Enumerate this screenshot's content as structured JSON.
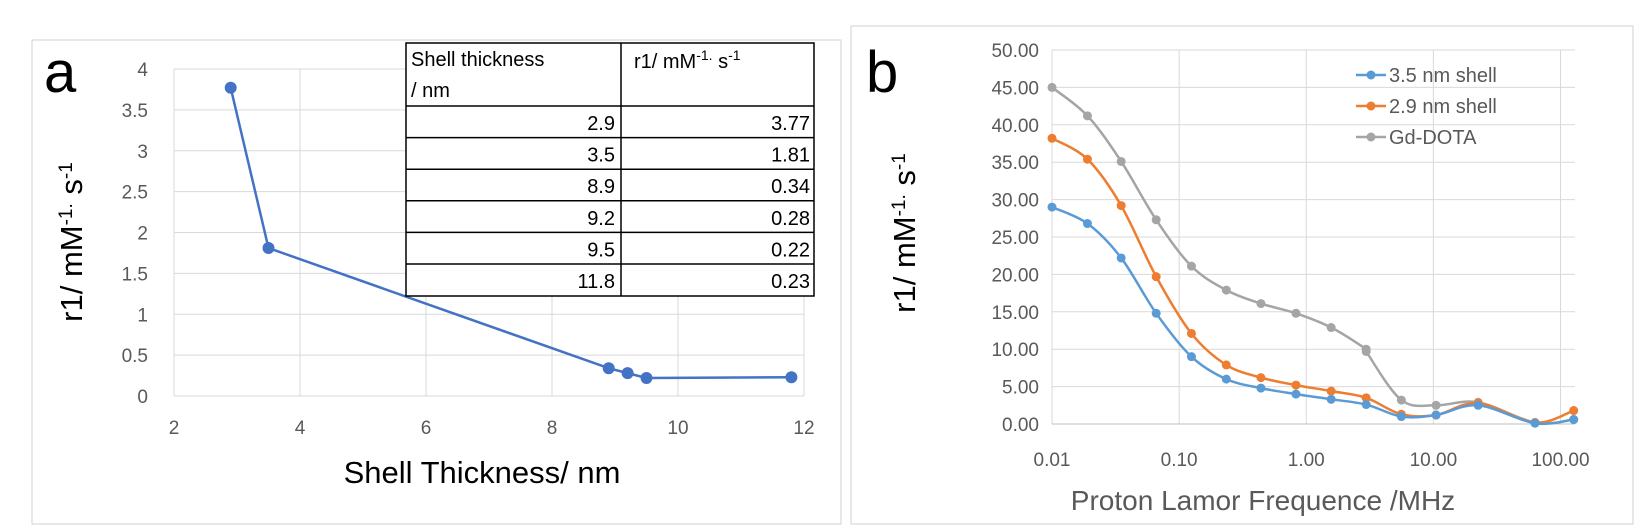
{
  "chart_data": [
    {
      "panel_label": "a",
      "type": "line",
      "xlabel": "Shell Thickness/ nm",
      "ylabel_base": "r1/ mM",
      "ylabel_sup1": "-1.",
      "ylabel_mid": " s",
      "ylabel_sup2": "-1",
      "xlim": [
        2,
        12
      ],
      "ylim": [
        0,
        4
      ],
      "xticks": [
        2,
        4,
        6,
        8,
        10,
        12
      ],
      "yticks": [
        0,
        0.5,
        1,
        1.5,
        2,
        2.5,
        3,
        3.5,
        4
      ],
      "x_tick_labels": [
        "2",
        "4",
        "6",
        "8",
        "10",
        "12"
      ],
      "y_tick_labels": [
        "0",
        "0.5",
        "1",
        "1.5",
        "2",
        "2.5",
        "3",
        "3.5",
        "4"
      ],
      "grid": true,
      "series": [
        {
          "color": "#4472c4",
          "x": [
            2.9,
            3.5,
            8.9,
            9.2,
            9.5,
            11.8
          ],
          "y": [
            3.77,
            1.81,
            0.34,
            0.28,
            0.22,
            0.23
          ]
        }
      ],
      "table": {
        "header_col1_line1": "Shell thickness",
        "header_col1_line2": "/ nm",
        "header_col2_base": "r1/ mM",
        "header_col2_sup1": "-1.",
        "header_col2_mid": " s",
        "header_col2_sup2": "-1",
        "rows": [
          [
            "2.9",
            "3.77"
          ],
          [
            "3.5",
            "1.81"
          ],
          [
            "8.9",
            "0.34"
          ],
          [
            "9.2",
            "0.28"
          ],
          [
            "9.5",
            "0.22"
          ],
          [
            "11.8",
            "0.23"
          ]
        ]
      }
    },
    {
      "panel_label": "b",
      "type": "line",
      "x_scale": "log",
      "xlabel": "Proton Lamor Frequence /MHz",
      "ylabel_base": "r1/ mM",
      "ylabel_sup1": "-1.",
      "ylabel_mid": " s",
      "ylabel_sup2": "-1",
      "xlim": [
        0.01,
        130
      ],
      "ylim": [
        0,
        50
      ],
      "xticks": [
        0.01,
        0.1,
        1,
        10,
        100
      ],
      "x_tick_labels": [
        "0.01",
        "0.10",
        "1.00",
        "10.00",
        "100.00"
      ],
      "yticks": [
        0,
        5,
        10,
        15,
        20,
        25,
        30,
        35,
        40,
        45,
        50
      ],
      "y_tick_labels": [
        "0.00",
        "5.00",
        "10.00",
        "15.00",
        "20.00",
        "25.00",
        "30.00",
        "35.00",
        "40.00",
        "45.00",
        "50.00"
      ],
      "grid": true,
      "legend_position": "top-right",
      "series": [
        {
          "name": "3.5 nm shell",
          "color": "#5b9bd5",
          "x": [
            0.01,
            0.019,
            0.035,
            0.066,
            0.125,
            0.235,
            0.44,
            0.83,
            1.57,
            2.96,
            5.6,
            10.5,
            22.5,
            63,
            127
          ],
          "y": [
            29.0,
            26.8,
            22.2,
            14.8,
            9.0,
            6.0,
            4.8,
            4.0,
            3.3,
            2.6,
            1.0,
            1.2,
            2.5,
            0.1,
            0.6
          ]
        },
        {
          "name": "2.9 nm shell",
          "color": "#ed7d31",
          "x": [
            0.01,
            0.019,
            0.035,
            0.066,
            0.125,
            0.235,
            0.44,
            0.83,
            1.57,
            2.96,
            5.6,
            10.5,
            22.5,
            63,
            127
          ],
          "y": [
            38.2,
            35.4,
            29.2,
            19.7,
            12.1,
            7.9,
            6.2,
            5.2,
            4.4,
            3.5,
            1.3,
            1.2,
            2.8,
            0.2,
            1.8
          ]
        },
        {
          "name": "Gd-DOTA",
          "color": "#a5a5a5",
          "x": [
            0.01,
            0.019,
            0.035,
            0.066,
            0.125,
            0.235,
            0.44,
            0.83,
            1.57,
            2.96,
            2.96,
            5.6,
            10.5,
            22.5,
            63,
            127
          ],
          "y": [
            45.0,
            41.2,
            35.1,
            27.3,
            21.1,
            17.9,
            16.1,
            14.8,
            12.9,
            10.0,
            9.7,
            3.2,
            2.5,
            2.9,
            0.2,
            0.6
          ]
        }
      ]
    }
  ]
}
